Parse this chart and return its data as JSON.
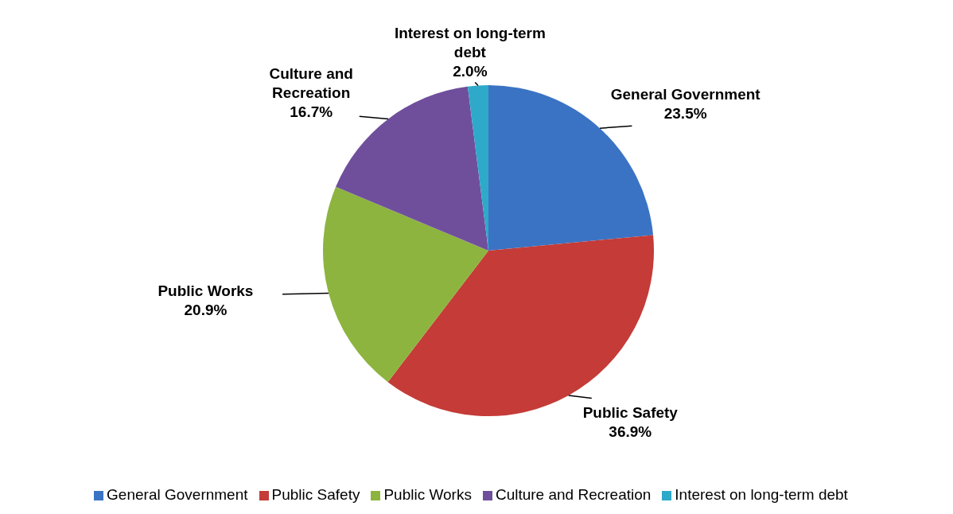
{
  "chart_data": {
    "type": "pie",
    "categories": [
      "General Government",
      "Public Safety",
      "Public Works",
      "Culture and Recreation",
      "Interest on long-term debt"
    ],
    "values": [
      23.5,
      36.9,
      20.9,
      16.7,
      2.0
    ],
    "value_labels": [
      "23.5%",
      "36.9%",
      "20.9%",
      "16.7%",
      "2.0%"
    ],
    "colors": [
      "#3b73c4",
      "#c43b37",
      "#8db43f",
      "#6f4f9c",
      "#2fa9c9"
    ],
    "legend": "bottom"
  }
}
